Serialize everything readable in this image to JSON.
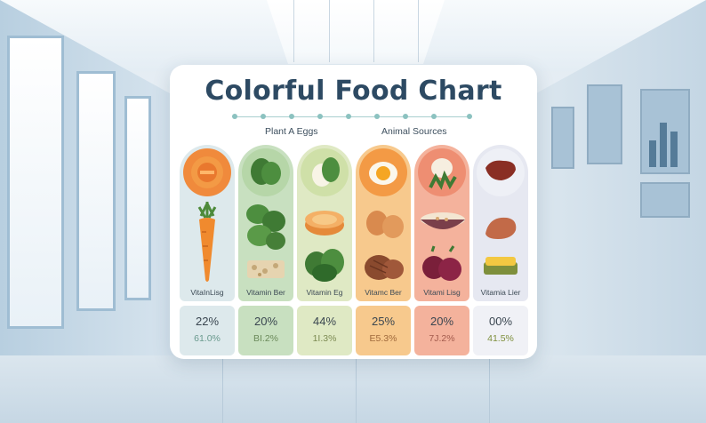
{
  "title": "Colorful Food Chart",
  "sections": {
    "plant_label": "Plant A Eggs",
    "animal_label": "Animal Sources"
  },
  "columns": [
    {
      "vitamin_label": "VitaInLisg",
      "pct": "22%",
      "sub": "61.0%",
      "color": "#dde9ec",
      "accent": "#6a9a8e"
    },
    {
      "vitamin_label": "Vitamin Ber",
      "pct": "20%",
      "sub": "BI.2%",
      "color": "#c8e0c0",
      "accent": "#6b8a5a"
    },
    {
      "vitamin_label": "Vitamin Eg",
      "pct": "44%",
      "sub": "1I.3%",
      "color": "#dfe9c4",
      "accent": "#7c8a52"
    },
    {
      "vitamin_label": "Vitamc Ber",
      "pct": "25%",
      "sub": "E5.3%",
      "color": "#f7c98d",
      "accent": "#a06a3c"
    },
    {
      "vitamin_label": "Vitami Lisg",
      "pct": "20%",
      "sub": "7J.2%",
      "color": "#f4b29c",
      "accent": "#a35b4d"
    },
    {
      "vitamin_label": "Vitamia Lier",
      "pct": "00%",
      "sub": "41.5%",
      "color": "#e6e8f1",
      "accent": "#7e8f3c"
    }
  ]
}
